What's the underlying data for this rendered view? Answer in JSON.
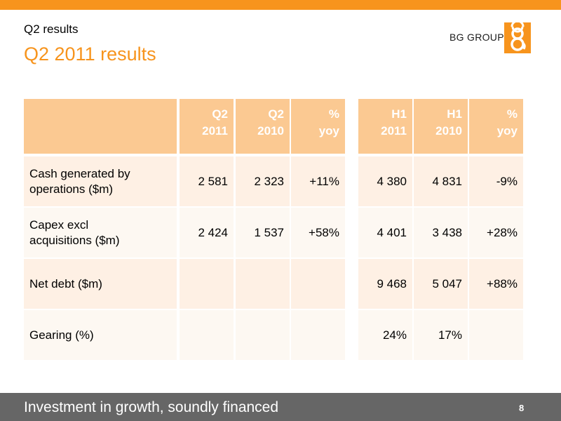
{
  "header": {
    "section": "Q2 results",
    "title": "Q2 2011 results",
    "logo_text": "BG GROUP"
  },
  "colors": {
    "accent": "#f7941d",
    "header_fill": "#fbc992",
    "row_fill_a": "#fef0e4",
    "row_fill_b": "#fdf8f2",
    "footer_bg": "#666666"
  },
  "table": {
    "columns": [
      {
        "line1": "Q2",
        "line2": "2011"
      },
      {
        "line1": "Q2",
        "line2": "2010"
      },
      {
        "line1": "%",
        "line2": "yoy"
      },
      {
        "line1": "H1",
        "line2": "2011"
      },
      {
        "line1": "H1",
        "line2": "2010"
      },
      {
        "line1": "%",
        "line2": "yoy"
      }
    ],
    "rows": [
      {
        "label_1": "Cash generated by",
        "label_2": "operations ($m)",
        "values": [
          "2 581",
          "2 323",
          "+11%",
          "4 380",
          "4 831",
          "-9%"
        ]
      },
      {
        "label_1": "Capex excl",
        "label_2": "acquisitions ($m)",
        "values": [
          "2 424",
          "1 537",
          "+58%",
          "4 401",
          "3 438",
          "+28%"
        ]
      },
      {
        "label_1": "Net debt ($m)",
        "label_2": "",
        "values": [
          "",
          "",
          "",
          "9 468",
          "5 047",
          "+88%"
        ]
      },
      {
        "label_1": "Gearing (%)",
        "label_2": "",
        "values": [
          "",
          "",
          "",
          "24%",
          "17%",
          ""
        ]
      }
    ]
  },
  "footer": {
    "tagline": "Investment in growth, soundly financed",
    "page_number": "8"
  }
}
